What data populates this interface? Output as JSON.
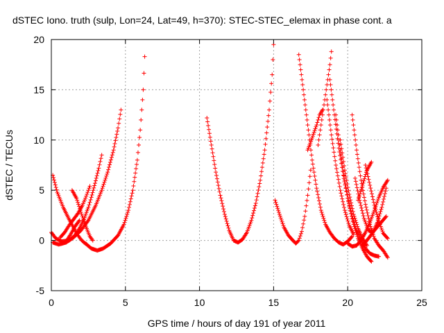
{
  "chart_data": {
    "type": "scatter",
    "title": "dSTEC Iono. truth (sulp, Lon=24, Lat=49, h=370): STEC-STEC_elemax in phase cont. a",
    "xlabel": "GPS time / hours of day 191 of year 2011",
    "ylabel": "dSTEC  / TECUs",
    "xlim": [
      0,
      25
    ],
    "ylim": [
      -5,
      20
    ],
    "xticks": [
      0,
      5,
      10,
      15,
      20,
      25
    ],
    "yticks": [
      -5,
      0,
      5,
      10,
      15,
      20
    ],
    "grid": true,
    "marker": "plus",
    "color": "#ff0000",
    "series": [
      {
        "x": [
          0.1,
          0.4,
          0.8,
          1.2,
          1.6,
          1.8,
          2.0,
          2.2,
          2.4
        ],
        "y": [
          6.5,
          4.8,
          3.3,
          2.1,
          1.0,
          0.5,
          0.1,
          -0.2,
          -0.4
        ]
      },
      {
        "x": [
          0.0,
          0.3,
          0.7,
          1.2,
          1.6,
          1.9,
          2.2,
          2.5,
          2.7,
          2.95,
          3.2,
          3.4
        ],
        "y": [
          0.8,
          0.2,
          -0.1,
          0.0,
          0.5,
          1.2,
          2.1,
          3.3,
          4.3,
          5.7,
          7.2,
          8.5
        ]
      },
      {
        "x": [
          0.1,
          0.5,
          1.0,
          1.5,
          2.0,
          2.5,
          3.0,
          3.4,
          3.8,
          4.2,
          4.5,
          4.7
        ],
        "y": [
          -0.2,
          -0.4,
          -0.2,
          0.3,
          1.0,
          2.0,
          3.5,
          5.0,
          6.8,
          9.0,
          11.2,
          13.0
        ]
      },
      {
        "x": [
          0.6,
          0.9,
          1.2,
          1.5,
          1.8,
          2.1,
          2.3,
          2.5,
          2.6
        ],
        "y": [
          0.3,
          0.8,
          1.5,
          2.1,
          2.7,
          3.5,
          4.2,
          5.0,
          5.4
        ]
      },
      {
        "x": [
          1.4,
          1.7,
          2.0,
          2.3,
          2.6,
          2.8
        ],
        "y": [
          5.0,
          4.2,
          2.8,
          1.5,
          0.4,
          0.0
        ]
      },
      {
        "x": [
          0.7,
          1.0,
          1.3,
          1.6,
          1.9
        ],
        "y": [
          -0.3,
          -0.1,
          0.6,
          1.4,
          2.0
        ]
      },
      {
        "x": [
          2.3,
          2.7,
          3.1,
          3.5,
          4.0,
          4.5,
          4.9,
          5.2,
          5.5,
          5.8,
          6.0,
          6.2,
          6.3
        ],
        "y": [
          -0.3,
          -0.8,
          -1.0,
          -0.8,
          -0.3,
          0.5,
          1.6,
          3.0,
          5.0,
          8.0,
          11.0,
          15.0,
          18.3
        ]
      },
      {
        "x": [
          10.5,
          10.8,
          11.1,
          11.4,
          11.7,
          12.0,
          12.3,
          12.6,
          12.9,
          13.2,
          13.5,
          13.8,
          14.1,
          14.4,
          14.7,
          14.9,
          15.0
        ],
        "y": [
          12.2,
          9.5,
          6.8,
          4.5,
          2.6,
          1.0,
          0.0,
          -0.2,
          0.1,
          0.8,
          2.0,
          3.7,
          6.0,
          9.0,
          13.0,
          16.5,
          19.5
        ]
      },
      {
        "x": [
          15.1,
          15.4,
          15.7,
          16.0,
          16.3,
          16.5,
          16.7,
          16.9,
          17.1,
          17.3,
          17.5
        ],
        "y": [
          4.0,
          2.6,
          1.3,
          0.5,
          0.0,
          -0.3,
          0.0,
          0.9,
          2.4,
          4.5,
          7.0
        ]
      },
      {
        "x": [
          16.7,
          17.0,
          17.3,
          17.6,
          17.9,
          18.2,
          18.5,
          18.8,
          19.1,
          19.4,
          19.7,
          20.0,
          20.3
        ],
        "y": [
          18.5,
          15.0,
          11.5,
          8.0,
          5.2,
          3.0,
          1.6,
          0.8,
          0.2,
          -0.2,
          -0.4,
          -0.1,
          0.4
        ]
      },
      {
        "x": [
          17.3,
          17.6,
          17.9,
          18.1,
          18.3
        ],
        "y": [
          9.0,
          10.2,
          11.5,
          12.5,
          13.0
        ]
      },
      {
        "x": [
          18.0,
          18.2,
          18.4,
          18.6,
          18.8,
          18.9
        ],
        "y": [
          9.5,
          11.5,
          13.5,
          15.5,
          17.5,
          18.8
        ]
      },
      {
        "x": [
          18.8,
          19.1,
          19.4,
          19.7,
          20.0,
          20.3,
          20.6,
          20.9,
          21.2,
          21.5,
          21.8,
          22.1
        ],
        "y": [
          16.0,
          12.5,
          9.2,
          6.5,
          4.2,
          2.4,
          1.0,
          0.0,
          -0.8,
          -1.3,
          -1.5,
          -1.6
        ]
      },
      {
        "x": [
          19.2,
          19.5,
          19.8,
          20.1,
          20.4,
          20.7,
          21.0,
          21.3,
          21.6
        ],
        "y": [
          12.5,
          9.0,
          6.0,
          3.5,
          1.6,
          0.2,
          -0.8,
          -1.6,
          -2.1
        ]
      },
      {
        "x": [
          18.6,
          18.9,
          19.2,
          19.5,
          19.8,
          20.1,
          20.4
        ],
        "y": [
          14.0,
          10.5,
          7.5,
          5.0,
          3.0,
          1.5,
          0.6
        ]
      },
      {
        "x": [
          19.5,
          19.8,
          20.1,
          20.4,
          20.7,
          21.0,
          21.3
        ],
        "y": [
          10.0,
          7.0,
          4.6,
          2.6,
          1.2,
          0.2,
          -0.5
        ]
      },
      {
        "x": [
          20.3,
          20.6,
          20.9,
          21.2,
          21.5,
          21.8,
          22.1,
          22.4,
          22.7
        ],
        "y": [
          12.5,
          9.0,
          6.0,
          3.6,
          1.6,
          0.2,
          -0.5,
          -1.0,
          -1.7
        ]
      },
      {
        "x": [
          20.0,
          20.3,
          20.6,
          20.9,
          21.2,
          21.5,
          21.8,
          22.1,
          22.4,
          22.7
        ],
        "y": [
          -0.3,
          -0.6,
          -0.5,
          0.0,
          0.8,
          1.8,
          3.0,
          4.3,
          5.3,
          6.0
        ]
      },
      {
        "x": [
          20.5,
          20.8,
          21.1,
          21.4,
          21.7,
          22.0,
          22.3,
          22.6
        ],
        "y": [
          6.2,
          4.0,
          2.2,
          1.0,
          0.8,
          1.8,
          3.3,
          5.2
        ]
      },
      {
        "x": [
          21.2,
          21.5,
          21.8,
          22.1,
          22.4,
          22.7
        ],
        "y": [
          7.5,
          5.5,
          3.5,
          1.9,
          0.7,
          0.2
        ]
      },
      {
        "x": [
          20.7,
          21.0,
          21.3,
          21.6
        ],
        "y": [
          4.0,
          5.5,
          7.0,
          7.8
        ]
      },
      {
        "x": [
          21.0,
          21.4,
          21.8,
          22.2,
          22.6
        ],
        "y": [
          -0.5,
          0.2,
          1.0,
          1.7,
          2.4
        ]
      }
    ]
  }
}
